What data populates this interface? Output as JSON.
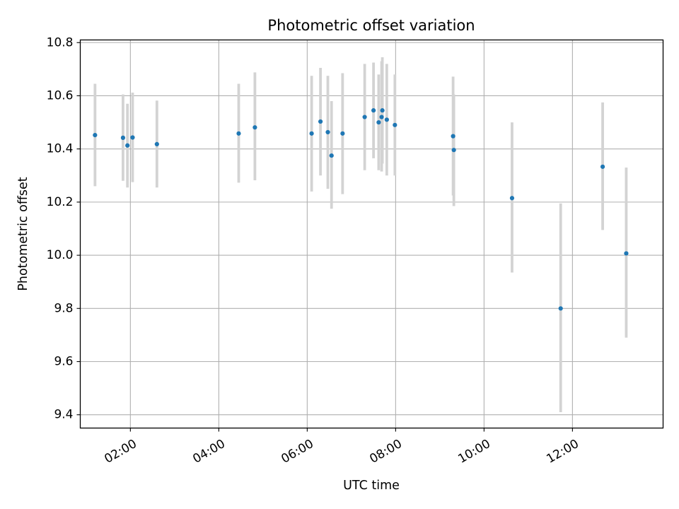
{
  "chart_data": {
    "type": "scatter",
    "title": "Photometric offset variation",
    "xlabel": "UTC time",
    "ylabel": "Photometric offset",
    "x_unit": "UTC time (HH:MM)",
    "xlim": [
      "00:52",
      "14:03"
    ],
    "ylim": [
      9.35,
      10.81
    ],
    "x_ticks": [
      "02:00",
      "04:00",
      "06:00",
      "08:00",
      "10:00",
      "12:00"
    ],
    "y_ticks": [
      "9.4",
      "9.6",
      "9.8",
      "10.0",
      "10.2",
      "10.4",
      "10.6",
      "10.8"
    ],
    "grid": true,
    "colors": {
      "point": "#1f77b4",
      "errorbar": "#d3d3d3",
      "grid": "#b0b0b0"
    },
    "points": [
      {
        "time": "01:12",
        "value": 10.452,
        "low": 10.26,
        "high": 10.645
      },
      {
        "time": "01:50",
        "value": 10.442,
        "low": 10.28,
        "high": 10.605
      },
      {
        "time": "01:56",
        "value": 10.413,
        "low": 10.255,
        "high": 10.57
      },
      {
        "time": "02:03",
        "value": 10.443,
        "low": 10.275,
        "high": 10.612
      },
      {
        "time": "02:36",
        "value": 10.418,
        "low": 10.255,
        "high": 10.582
      },
      {
        "time": "04:27",
        "value": 10.458,
        "low": 10.273,
        "high": 10.645
      },
      {
        "time": "04:49",
        "value": 10.481,
        "low": 10.282,
        "high": 10.688
      },
      {
        "time": "06:06",
        "value": 10.458,
        "low": 10.24,
        "high": 10.675
      },
      {
        "time": "06:18",
        "value": 10.503,
        "low": 10.3,
        "high": 10.705
      },
      {
        "time": "06:28",
        "value": 10.463,
        "low": 10.25,
        "high": 10.675
      },
      {
        "time": "06:33",
        "value": 10.375,
        "low": 10.175,
        "high": 10.58
      },
      {
        "time": "06:48",
        "value": 10.458,
        "low": 10.23,
        "high": 10.685
      },
      {
        "time": "07:18",
        "value": 10.52,
        "low": 10.32,
        "high": 10.72
      },
      {
        "time": "07:30",
        "value": 10.545,
        "low": 10.365,
        "high": 10.725
      },
      {
        "time": "07:37",
        "value": 10.5,
        "low": 10.32,
        "high": 10.68
      },
      {
        "time": "07:41",
        "value": 10.52,
        "low": 10.315,
        "high": 10.73
      },
      {
        "time": "07:42",
        "value": 10.545,
        "low": 10.345,
        "high": 10.745
      },
      {
        "time": "07:48",
        "value": 10.51,
        "low": 10.3,
        "high": 10.72
      },
      {
        "time": "07:59",
        "value": 10.49,
        "low": 10.3,
        "high": 10.68
      },
      {
        "time": "09:18",
        "value": 10.448,
        "low": 10.225,
        "high": 10.672
      },
      {
        "time": "09:19",
        "value": 10.396,
        "low": 10.185,
        "high": 10.605
      },
      {
        "time": "10:38",
        "value": 10.215,
        "low": 9.935,
        "high": 10.5
      },
      {
        "time": "11:44",
        "value": 9.8,
        "low": 9.41,
        "high": 10.195
      },
      {
        "time": "12:41",
        "value": 10.333,
        "low": 10.095,
        "high": 10.575
      },
      {
        "time": "13:13",
        "value": 10.007,
        "low": 9.69,
        "high": 10.33
      }
    ]
  }
}
